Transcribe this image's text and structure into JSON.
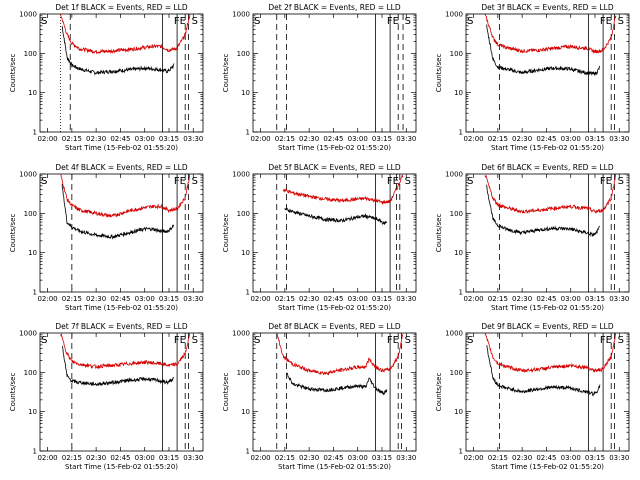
{
  "figure": {
    "xlabel_common": "Start Time (15-Feb-02 01:55:20)",
    "ylabel_common": "Counts/sec",
    "x_ticks": [
      "02:00",
      "02:15",
      "02:30",
      "02:45",
      "03:00",
      "03:15",
      "03:30"
    ],
    "y_ticks": [
      "1",
      "10",
      "100",
      "1000"
    ]
  },
  "colors": {
    "events": "#000000",
    "lld": "#d40000",
    "background": "#ffffff"
  },
  "chart_data": [
    {
      "type": "line",
      "title": "Det 1f BLACK = Events, RED = LLD",
      "xlabel": "Start Time (15-Feb-02 01:55:20)",
      "ylabel": "Counts/sec",
      "ylim": [
        1,
        1000
      ],
      "yscale": "log",
      "xlim": [
        "01:55:20",
        "03:36:00"
      ],
      "x_ticks": [
        "02:00",
        "02:15",
        "02:30",
        "02:45",
        "03:00",
        "03:15",
        "03:30"
      ],
      "series": [
        {
          "name": "Events",
          "color": "black",
          "x": [
            "02:09",
            "02:12",
            "02:15",
            "02:20",
            "02:30",
            "02:40",
            "02:50",
            "03:00",
            "03:05",
            "03:10",
            "03:14",
            "03:16",
            "03:18"
          ],
          "values": [
            500,
            80,
            50,
            40,
            32,
            35,
            38,
            42,
            40,
            38,
            35,
            40,
            50
          ]
        },
        {
          "name": "LLD",
          "color": "red",
          "x": [
            "02:08",
            "02:12",
            "02:15",
            "02:20",
            "02:30",
            "02:40",
            "02:50",
            "03:00",
            "03:05",
            "03:10",
            "03:15",
            "03:20",
            "03:25",
            "03:28"
          ],
          "values": [
            1000,
            300,
            180,
            130,
            110,
            115,
            125,
            140,
            150,
            150,
            120,
            135,
            300,
            1000
          ]
        }
      ],
      "markers": {
        "dotted": [
          "02:08"
        ],
        "dashed": [
          "02:14",
          "03:25",
          "03:27"
        ],
        "solid": [
          "03:11",
          "03:20"
        ],
        "labels": [
          {
            "text": "S",
            "at": "01:56"
          },
          {
            "text": "FE",
            "at": "03:18"
          },
          {
            "text": "S",
            "at": "03:29"
          }
        ]
      }
    },
    {
      "type": "line",
      "title": "Det 2f BLACK = Events, RED = LLD",
      "xlabel": "Start Time (15-Feb-02 01:55:20)",
      "ylabel": "Counts/sec",
      "ylim": [
        1,
        1000
      ],
      "yscale": "log",
      "xlim": [
        "01:55:20",
        "03:36:00"
      ],
      "x_ticks": [
        "02:00",
        "02:15",
        "02:30",
        "02:45",
        "03:00",
        "03:15",
        "03:30"
      ],
      "series": [],
      "markers": {
        "dotted": [],
        "dashed": [
          "02:10",
          "02:16",
          "03:25",
          "03:28"
        ],
        "solid": [
          "03:11",
          "03:20"
        ],
        "labels": [
          {
            "text": "S",
            "at": "01:56"
          },
          {
            "text": "FE",
            "at": "03:18"
          },
          {
            "text": "S",
            "at": "03:29"
          }
        ]
      }
    },
    {
      "type": "line",
      "title": "Det 3f BLACK = Events, RED = LLD",
      "xlabel": "Start Time (15-Feb-02 01:55:20)",
      "ylabel": "Counts/sec",
      "ylim": [
        1,
        1000
      ],
      "yscale": "log",
      "xlim": [
        "01:55:20",
        "03:36:00"
      ],
      "x_ticks": [
        "02:00",
        "02:15",
        "02:30",
        "02:45",
        "03:00",
        "03:15",
        "03:30"
      ],
      "series": [
        {
          "name": "Events",
          "color": "black",
          "x": [
            "02:08",
            "02:12",
            "02:15",
            "02:20",
            "02:30",
            "02:40",
            "02:50",
            "03:00",
            "03:05",
            "03:10",
            "03:14",
            "03:16",
            "03:18"
          ],
          "values": [
            500,
            70,
            45,
            40,
            32,
            38,
            42,
            40,
            35,
            32,
            30,
            32,
            45
          ]
        },
        {
          "name": "LLD",
          "color": "red",
          "x": [
            "02:07",
            "02:12",
            "02:15",
            "02:20",
            "02:30",
            "02:40",
            "02:50",
            "03:00",
            "03:05",
            "03:10",
            "03:15",
            "03:20",
            "03:25",
            "03:28"
          ],
          "values": [
            1000,
            250,
            170,
            140,
            115,
            120,
            135,
            150,
            140,
            135,
            110,
            120,
            250,
            1000
          ]
        }
      ],
      "markers": {
        "dotted": [],
        "dashed": [
          "02:16",
          "03:25",
          "03:27"
        ],
        "solid": [
          "03:11",
          "03:20"
        ],
        "labels": [
          {
            "text": "S",
            "at": "01:56"
          },
          {
            "text": "FE",
            "at": "03:18"
          },
          {
            "text": "S",
            "at": "03:29"
          }
        ]
      }
    },
    {
      "type": "line",
      "title": "Det 4f BLACK = Events, RED = LLD",
      "xlabel": "Start Time (15-Feb-02 01:55:20)",
      "ylabel": "Counts/sec",
      "ylim": [
        1,
        1000
      ],
      "yscale": "log",
      "xlim": [
        "01:55:20",
        "03:36:00"
      ],
      "x_ticks": [
        "02:00",
        "02:15",
        "02:30",
        "02:45",
        "03:00",
        "03:15",
        "03:30"
      ],
      "series": [
        {
          "name": "Events",
          "color": "black",
          "x": [
            "02:09",
            "02:12",
            "02:15",
            "02:20",
            "02:30",
            "02:40",
            "02:50",
            "03:00",
            "03:05",
            "03:10",
            "03:14",
            "03:16",
            "03:18"
          ],
          "values": [
            500,
            60,
            45,
            35,
            28,
            25,
            32,
            40,
            40,
            35,
            35,
            40,
            50
          ]
        },
        {
          "name": "LLD",
          "color": "red",
          "x": [
            "02:08",
            "02:12",
            "02:15",
            "02:20",
            "02:30",
            "02:40",
            "02:50",
            "03:00",
            "03:05",
            "03:10",
            "03:15",
            "03:20",
            "03:25",
            "03:28"
          ],
          "values": [
            1000,
            230,
            160,
            120,
            100,
            85,
            115,
            140,
            150,
            150,
            120,
            130,
            250,
            1000
          ]
        }
      ],
      "markers": {
        "dotted": [],
        "dashed": [
          "02:15",
          "03:25",
          "03:27"
        ],
        "solid": [
          "03:11",
          "03:20"
        ],
        "labels": [
          {
            "text": "S",
            "at": "01:56"
          },
          {
            "text": "FE",
            "at": "03:18"
          },
          {
            "text": "S",
            "at": "03:29"
          }
        ]
      }
    },
    {
      "type": "line",
      "title": "Det 5f BLACK = Events, RED = LLD",
      "xlabel": "Start Time (15-Feb-02 01:55:20)",
      "ylabel": "Counts/sec",
      "ylim": [
        1,
        1000
      ],
      "yscale": "log",
      "xlim": [
        "01:55:20",
        "03:36:00"
      ],
      "x_ticks": [
        "02:00",
        "02:15",
        "02:30",
        "02:45",
        "03:00",
        "03:15",
        "03:30"
      ],
      "series": [
        {
          "name": "Events",
          "color": "black",
          "x": [
            "02:15",
            "02:20",
            "02:30",
            "02:40",
            "02:50",
            "03:00",
            "03:05",
            "03:10",
            "03:14",
            "03:16",
            "03:18"
          ],
          "values": [
            130,
            110,
            85,
            70,
            65,
            80,
            85,
            75,
            65,
            55,
            60
          ]
        },
        {
          "name": "LLD",
          "color": "red",
          "x": [
            "02:14",
            "02:20",
            "02:30",
            "02:40",
            "02:50",
            "03:00",
            "03:05",
            "03:10",
            "03:15",
            "03:20",
            "03:25",
            "03:28"
          ],
          "values": [
            400,
            330,
            270,
            230,
            210,
            230,
            240,
            220,
            190,
            200,
            500,
            1000
          ]
        }
      ],
      "markers": {
        "dotted": [],
        "dashed": [
          "02:10",
          "02:16",
          "03:24",
          "03:26"
        ],
        "solid": [
          "03:11",
          "03:20"
        ],
        "labels": [
          {
            "text": "FE",
            "at": "03:18"
          },
          {
            "text": "S",
            "at": "03:29"
          }
        ]
      }
    },
    {
      "type": "line",
      "title": "Det 6f BLACK = Events, RED = LLD",
      "xlabel": "Start Time (15-Feb-02 01:55:20)",
      "ylabel": "Counts/sec",
      "ylim": [
        1,
        1000
      ],
      "yscale": "log",
      "xlim": [
        "01:55:20",
        "03:36:00"
      ],
      "x_ticks": [
        "02:00",
        "02:15",
        "02:30",
        "02:45",
        "03:00",
        "03:15",
        "03:30"
      ],
      "series": [
        {
          "name": "Events",
          "color": "black",
          "x": [
            "02:08",
            "02:12",
            "02:15",
            "02:20",
            "02:30",
            "02:40",
            "02:50",
            "03:00",
            "03:05",
            "03:10",
            "03:14",
            "03:16",
            "03:18"
          ],
          "values": [
            500,
            70,
            50,
            40,
            32,
            38,
            42,
            40,
            35,
            32,
            28,
            32,
            45
          ]
        },
        {
          "name": "LLD",
          "color": "red",
          "x": [
            "02:07",
            "02:12",
            "02:15",
            "02:20",
            "02:30",
            "02:40",
            "02:50",
            "03:00",
            "03:05",
            "03:10",
            "03:15",
            "03:20",
            "03:25",
            "03:28"
          ],
          "values": [
            1000,
            240,
            170,
            140,
            110,
            120,
            135,
            150,
            140,
            135,
            110,
            120,
            250,
            1000
          ]
        }
      ],
      "markers": {
        "dotted": [],
        "dashed": [
          "02:16",
          "03:25",
          "03:27"
        ],
        "solid": [
          "03:11",
          "03:20"
        ],
        "labels": [
          {
            "text": "S",
            "at": "01:56"
          },
          {
            "text": "FE",
            "at": "03:18"
          },
          {
            "text": "S",
            "at": "03:29"
          }
        ]
      }
    },
    {
      "type": "line",
      "title": "Det 7f BLACK = Events, RED = LLD",
      "xlabel": "Start Time (15-Feb-02 01:55:20)",
      "ylabel": "Counts/sec",
      "ylim": [
        1,
        1000
      ],
      "yscale": "log",
      "xlim": [
        "01:55:20",
        "03:36:00"
      ],
      "x_ticks": [
        "02:00",
        "02:15",
        "02:30",
        "02:45",
        "03:00",
        "03:15",
        "03:30"
      ],
      "series": [
        {
          "name": "Events",
          "color": "black",
          "x": [
            "02:09",
            "02:12",
            "02:15",
            "02:20",
            "02:30",
            "02:40",
            "02:50",
            "03:00",
            "03:05",
            "03:10",
            "03:14",
            "03:16",
            "03:18"
          ],
          "values": [
            500,
            80,
            60,
            55,
            50,
            55,
            62,
            68,
            65,
            60,
            55,
            60,
            70
          ]
        },
        {
          "name": "LLD",
          "color": "red",
          "x": [
            "02:08",
            "02:12",
            "02:15",
            "02:20",
            "02:30",
            "02:40",
            "02:50",
            "03:00",
            "03:05",
            "03:10",
            "03:15",
            "03:20",
            "03:25",
            "03:28"
          ],
          "values": [
            1000,
            300,
            190,
            160,
            140,
            150,
            165,
            180,
            175,
            165,
            150,
            160,
            300,
            1000
          ]
        }
      ],
      "markers": {
        "dotted": [],
        "dashed": [
          "02:15",
          "03:25",
          "03:27"
        ],
        "solid": [
          "03:11",
          "03:20"
        ],
        "labels": [
          {
            "text": "S",
            "at": "01:56"
          },
          {
            "text": "FE",
            "at": "03:18"
          },
          {
            "text": "S",
            "at": "03:29"
          }
        ]
      }
    },
    {
      "type": "line",
      "title": "Det 8f BLACK = Events, RED = LLD",
      "xlabel": "Start Time (15-Feb-02 01:55:20)",
      "ylabel": "Counts/sec",
      "ylim": [
        1,
        1000
      ],
      "yscale": "log",
      "xlim": [
        "01:55:20",
        "03:36:00"
      ],
      "x_ticks": [
        "02:00",
        "02:15",
        "02:30",
        "02:45",
        "03:00",
        "03:15",
        "03:30"
      ],
      "series": [
        {
          "name": "Events",
          "color": "black",
          "x": [
            "02:16",
            "02:20",
            "02:30",
            "02:40",
            "02:50",
            "03:00",
            "03:05",
            "03:07",
            "03:10",
            "03:14",
            "03:16",
            "03:18"
          ],
          "values": [
            100,
            50,
            38,
            35,
            40,
            45,
            42,
            70,
            45,
            32,
            30,
            35
          ]
        },
        {
          "name": "LLD",
          "color": "red",
          "x": [
            "02:10",
            "02:14",
            "02:20",
            "02:30",
            "02:40",
            "02:50",
            "03:00",
            "03:05",
            "03:07",
            "03:10",
            "03:15",
            "03:20",
            "03:25",
            "03:28"
          ],
          "values": [
            1000,
            250,
            160,
            110,
            95,
            115,
            135,
            140,
            220,
            150,
            110,
            120,
            250,
            1000
          ]
        }
      ],
      "markers": {
        "dotted": [],
        "dashed": [
          "02:10",
          "02:16",
          "03:25",
          "03:27"
        ],
        "solid": [
          "03:11",
          "03:20"
        ],
        "labels": [
          {
            "text": "S",
            "at": "01:56"
          },
          {
            "text": "FE",
            "at": "03:18"
          },
          {
            "text": "S",
            "at": "03:29"
          }
        ]
      }
    },
    {
      "type": "line",
      "title": "Det 9f BLACK = Events, RED = LLD",
      "xlabel": "Start Time (15-Feb-02 01:55:20)",
      "ylabel": "Counts/sec",
      "ylim": [
        1,
        1000
      ],
      "yscale": "log",
      "xlim": [
        "01:55:20",
        "03:36:00"
      ],
      "x_ticks": [
        "02:00",
        "02:15",
        "02:30",
        "02:45",
        "03:00",
        "03:15",
        "03:30"
      ],
      "series": [
        {
          "name": "Events",
          "color": "black",
          "x": [
            "02:08",
            "02:12",
            "02:15",
            "02:20",
            "02:30",
            "02:40",
            "02:50",
            "03:00",
            "03:05",
            "03:10",
            "03:14",
            "03:16",
            "03:18"
          ],
          "values": [
            500,
            70,
            48,
            40,
            32,
            38,
            42,
            40,
            35,
            32,
            28,
            32,
            45
          ]
        },
        {
          "name": "LLD",
          "color": "red",
          "x": [
            "02:07",
            "02:12",
            "02:15",
            "02:20",
            "02:30",
            "02:40",
            "02:50",
            "03:00",
            "03:05",
            "03:10",
            "03:15",
            "03:20",
            "03:25",
            "03:28"
          ],
          "values": [
            1000,
            240,
            170,
            140,
            110,
            120,
            135,
            150,
            140,
            135,
            110,
            120,
            250,
            1000
          ]
        }
      ],
      "markers": {
        "dotted": [],
        "dashed": [
          "02:16",
          "03:25",
          "03:27"
        ],
        "solid": [
          "03:11",
          "03:20"
        ],
        "labels": [
          {
            "text": "S",
            "at": "01:56"
          },
          {
            "text": "FE",
            "at": "03:18"
          },
          {
            "text": "S",
            "at": "03:29"
          }
        ]
      }
    }
  ]
}
